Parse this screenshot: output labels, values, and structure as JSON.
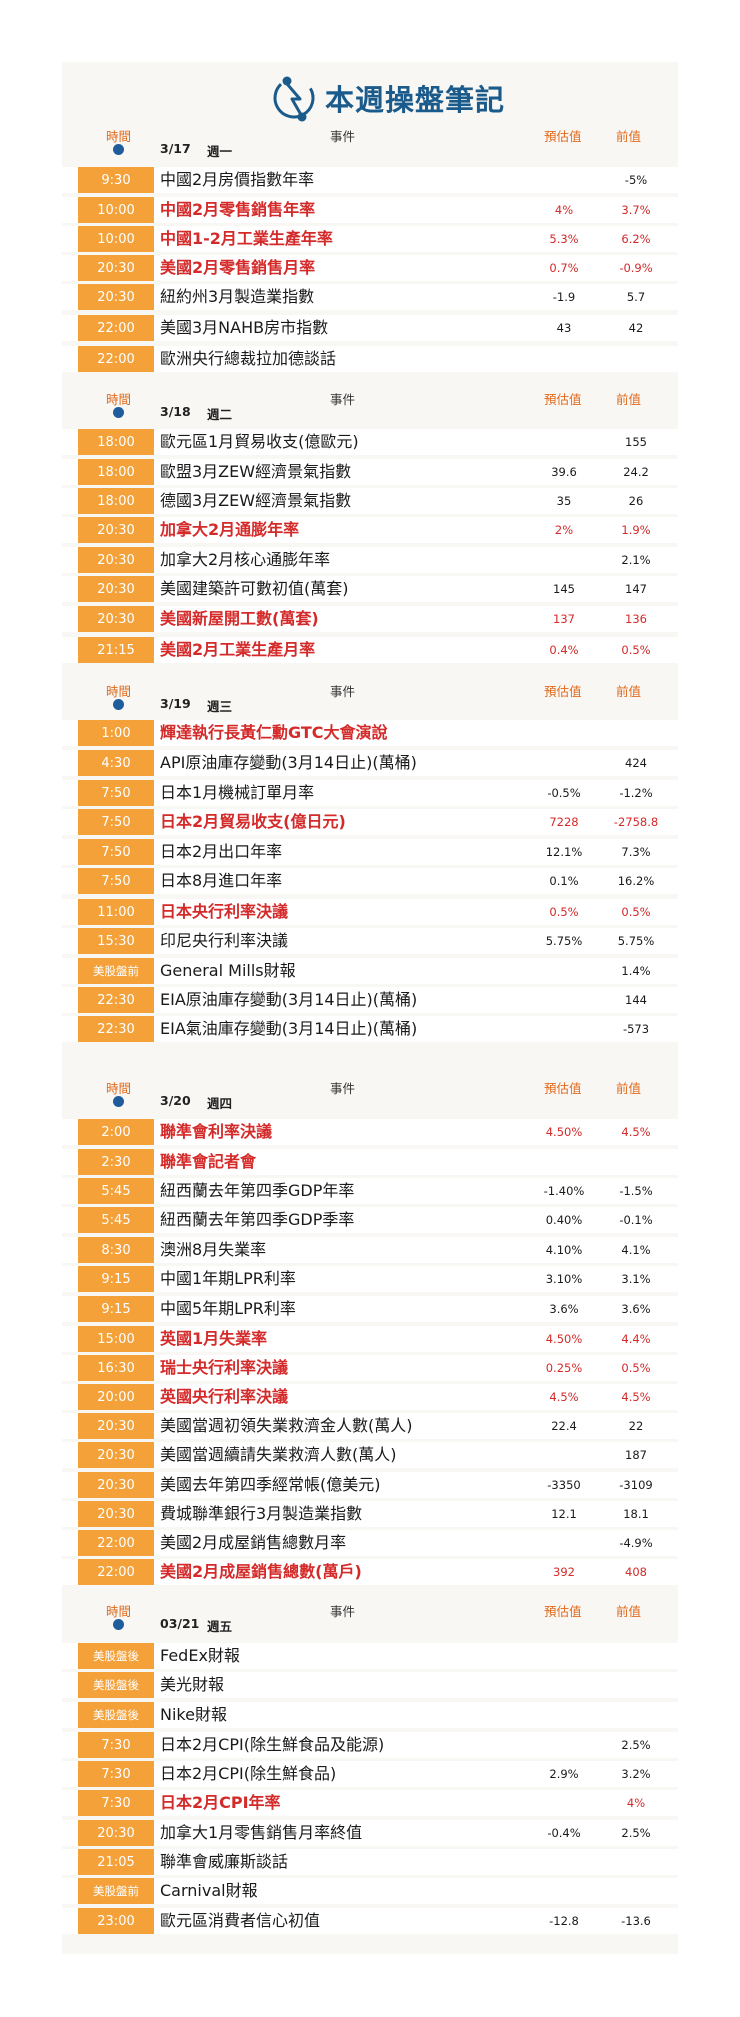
{
  "title": "本週操盤筆記",
  "header": {
    "time": "時間",
    "event": "事件",
    "forecast": "預估值",
    "previous": "前值"
  },
  "days": [
    {
      "date": "3/17",
      "weekday": "週一",
      "rows": [
        {
          "time": "9:30",
          "event": "中國2月房價指數年率",
          "forecast": "",
          "previous": "-5%"
        },
        {
          "time": "10:00",
          "event": "中國2月零售銷售年率",
          "forecast": "4%",
          "previous": "3.7%",
          "hl": true
        },
        {
          "time": "10:00",
          "event": "中國1-2月工業生產年率",
          "forecast": "5.3%",
          "previous": "6.2%",
          "hl": true
        },
        {
          "time": "20:30",
          "event": "美國2月零售銷售月率",
          "forecast": "0.7%",
          "previous": "-0.9%",
          "hl": true
        },
        {
          "time": "20:30",
          "event": "紐約州3月製造業指數",
          "forecast": "-1.9",
          "previous": "5.7"
        },
        {
          "time": "22:00",
          "event": "美國3月NAHB房市指數",
          "forecast": "43",
          "previous": "42"
        },
        {
          "time": "22:00",
          "event": "歐洲央行總裁拉加德談話",
          "forecast": "",
          "previous": ""
        }
      ]
    },
    {
      "date": "3/18",
      "weekday": "週二",
      "rows": [
        {
          "time": "18:00",
          "event": "歐元區1月貿易收支(億歐元)",
          "forecast": "",
          "previous": "155"
        },
        {
          "time": "18:00",
          "event": "歐盟3月ZEW經濟景氣指數",
          "forecast": "39.6",
          "previous": "24.2"
        },
        {
          "time": "18:00",
          "event": "德國3月ZEW經濟景氣指數",
          "forecast": "35",
          "previous": "26"
        },
        {
          "time": "20:30",
          "event": "加拿大2月通膨年率",
          "forecast": "2%",
          "previous": "1.9%",
          "hl": true
        },
        {
          "time": "20:30",
          "event": "加拿大2月核心通膨年率",
          "forecast": "",
          "previous": "2.1%"
        },
        {
          "time": "20:30",
          "event": "美國建築許可數初值(萬套)",
          "forecast": "145",
          "previous": "147"
        },
        {
          "time": "20:30",
          "event": "美國新屋開工數(萬套)",
          "forecast": "137",
          "previous": "136",
          "hl": true
        },
        {
          "time": "21:15",
          "event": "美國2月工業生產月率",
          "forecast": "0.4%",
          "previous": "0.5%",
          "hl": true
        }
      ]
    },
    {
      "date": "3/19",
      "weekday": "週三",
      "rows": [
        {
          "time": "1:00",
          "event": "輝達執行長黃仁勳GTC大會演說",
          "forecast": "",
          "previous": "",
          "hl": true
        },
        {
          "time": "4:30",
          "event": "API原油庫存變動(3月14日止)(萬桶)",
          "forecast": "",
          "previous": "424"
        },
        {
          "time": "7:50",
          "event": "日本1月機械訂單月率",
          "forecast": "-0.5%",
          "previous": "-1.2%"
        },
        {
          "time": "7:50",
          "event": "日本2月貿易收支(億日元)",
          "forecast": "7228",
          "previous": "-2758.8",
          "hl": true
        },
        {
          "time": "7:50",
          "event": "日本2月出口年率",
          "forecast": "12.1%",
          "previous": "7.3%"
        },
        {
          "time": "7:50",
          "event": "日本8月進口年率",
          "forecast": "0.1%",
          "previous": "16.2%"
        },
        {
          "time": "11:00",
          "event": "日本央行利率決議",
          "forecast": "0.5%",
          "previous": "0.5%",
          "hl": true
        },
        {
          "time": "15:30",
          "event": "印尼央行利率決議",
          "forecast": "5.75%",
          "previous": "5.75%"
        },
        {
          "time": "美股盤前",
          "event": "General Mills財報",
          "forecast": "",
          "previous": "1.4%",
          "small": true
        },
        {
          "time": "22:30",
          "event": "EIA原油庫存變動(3月14日止)(萬桶)",
          "forecast": "",
          "previous": "144"
        },
        {
          "time": "22:30",
          "event": "EIA氣油庫存變動(3月14日止)(萬桶)",
          "forecast": "",
          "previous": "-573"
        }
      ]
    },
    {
      "date": "3/20",
      "weekday": "週四",
      "rows": [
        {
          "time": "2:00",
          "event": "聯準會利率決議",
          "forecast": "4.50%",
          "previous": "4.5%",
          "hl": true
        },
        {
          "time": "2:30",
          "event": "聯準會記者會",
          "forecast": "",
          "previous": "",
          "hl": true
        },
        {
          "time": "5:45",
          "event": "紐西蘭去年第四季GDP年率",
          "forecast": "-1.40%",
          "previous": "-1.5%"
        },
        {
          "time": "5:45",
          "event": "紐西蘭去年第四季GDP季率",
          "forecast": "0.40%",
          "previous": "-0.1%"
        },
        {
          "time": "8:30",
          "event": "澳洲8月失業率",
          "forecast": "4.10%",
          "previous": "4.1%"
        },
        {
          "time": "9:15",
          "event": "中國1年期LPR利率",
          "forecast": "3.10%",
          "previous": "3.1%"
        },
        {
          "time": "9:15",
          "event": "中國5年期LPR利率",
          "forecast": "3.6%",
          "previous": "3.6%"
        },
        {
          "time": "15:00",
          "event": "英國1月失業率",
          "forecast": "4.50%",
          "previous": "4.4%",
          "hl": true
        },
        {
          "time": "16:30",
          "event": "瑞士央行利率決議",
          "forecast": "0.25%",
          "previous": "0.5%",
          "hl": true
        },
        {
          "time": "20:00",
          "event": "英國央行利率決議",
          "forecast": "4.5%",
          "previous": "4.5%",
          "hl": true
        },
        {
          "time": "20:30",
          "event": "美國當週初領失業救濟金人數(萬人)",
          "forecast": "22.4",
          "previous": "22"
        },
        {
          "time": "20:30",
          "event": "美國當週續請失業救濟人數(萬人)",
          "forecast": "",
          "previous": "187"
        },
        {
          "time": "20:30",
          "event": "美國去年第四季經常帳(億美元)",
          "forecast": "-3350",
          "previous": "-3109"
        },
        {
          "time": "20:30",
          "event": "費城聯準銀行3月製造業指數",
          "forecast": "12.1",
          "previous": "18.1"
        },
        {
          "time": "22:00",
          "event": "美國2月成屋銷售總數月率",
          "forecast": "",
          "previous": "-4.9%"
        },
        {
          "time": "22:00",
          "event": "美國2月成屋銷售總數(萬戶)",
          "forecast": "392",
          "previous": "408",
          "hl": true
        }
      ]
    },
    {
      "date": "03/21",
      "weekday": "週五",
      "rows": [
        {
          "time": "美股盤後",
          "event": "FedEx財報",
          "forecast": "",
          "previous": "",
          "small": true
        },
        {
          "time": "美股盤後",
          "event": "美光財報",
          "forecast": "",
          "previous": "",
          "small": true
        },
        {
          "time": "美股盤後",
          "event": "Nike財報",
          "forecast": "",
          "previous": "",
          "small": true
        },
        {
          "time": "7:30",
          "event": "日本2月CPI(除生鮮食品及能源)",
          "forecast": "",
          "previous": "2.5%"
        },
        {
          "time": "7:30",
          "event": "日本2月CPI(除生鮮食品)",
          "forecast": "2.9%",
          "previous": "3.2%"
        },
        {
          "time": "7:30",
          "event": "日本2月CPI年率",
          "forecast": "",
          "previous": "4%",
          "hl": true
        },
        {
          "time": "20:30",
          "event": "加拿大1月零售銷售月率終值",
          "forecast": "-0.4%",
          "previous": "2.5%"
        },
        {
          "time": "21:05",
          "event": "聯準會威廉斯談話",
          "forecast": "",
          "previous": ""
        },
        {
          "time": "美股盤前",
          "event": "Carnival財報",
          "forecast": "",
          "previous": "",
          "small": true
        },
        {
          "time": "23:00",
          "event": "歐元區消費者信心初值",
          "forecast": "-12.8",
          "previous": "-13.6"
        }
      ]
    }
  ]
}
